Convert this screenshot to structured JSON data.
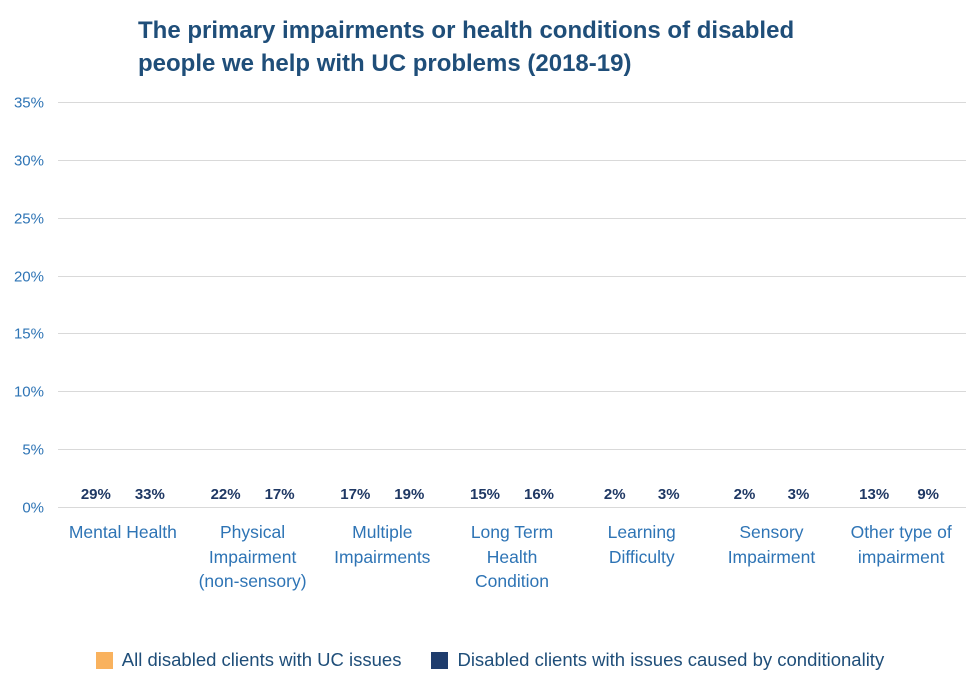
{
  "title": "The primary impairments or health conditions of disabled people we help with UC problems (2018-19)",
  "colors": {
    "series_orange": "#F9B25E",
    "series_navy": "#1F3D6D",
    "title_text": "#1F4E79",
    "axis_text": "#2E74B5",
    "data_label_text": "#1F3864",
    "gridline": "#D9D9D9",
    "background": "#FFFFFF"
  },
  "chart_data": {
    "type": "bar",
    "title": "The primary impairments or health conditions of disabled people we help with UC problems (2018-19)",
    "categories": [
      "Mental Health",
      "Physical Impairment (non-sensory)",
      "Multiple Impairments",
      "Long Term Health Condition",
      "Learning Difficulty",
      "Sensory Impairment",
      "Other type of impairment"
    ],
    "series": [
      {
        "name": "All disabled clients with UC issues",
        "color": "#F9B25E",
        "values": [
          29,
          22,
          17,
          15,
          2,
          2,
          13
        ]
      },
      {
        "name": "Disabled clients with issues caused by conditionality",
        "color": "#1F3D6D",
        "values": [
          33,
          17,
          19,
          16,
          3,
          3,
          9
        ]
      }
    ],
    "data_labels": [
      [
        "29%",
        "33%"
      ],
      [
        "22%",
        "17%"
      ],
      [
        "17%",
        "19%"
      ],
      [
        "15%",
        "16%"
      ],
      [
        "2%",
        "3%"
      ],
      [
        "2%",
        "3%"
      ],
      [
        "13%",
        "9%"
      ]
    ],
    "xlabel": "",
    "ylabel": "",
    "ylim": [
      0,
      35
    ],
    "ytick_step": 5,
    "ytick_labels": [
      "0%",
      "5%",
      "10%",
      "15%",
      "20%",
      "25%",
      "30%",
      "35%"
    ],
    "grid": true,
    "legend_position": "bottom"
  },
  "legend": {
    "items": [
      {
        "label": "All disabled clients with UC issues",
        "color": "#F9B25E"
      },
      {
        "label": "Disabled clients with issues caused by conditionality",
        "color": "#1F3D6D"
      }
    ]
  }
}
